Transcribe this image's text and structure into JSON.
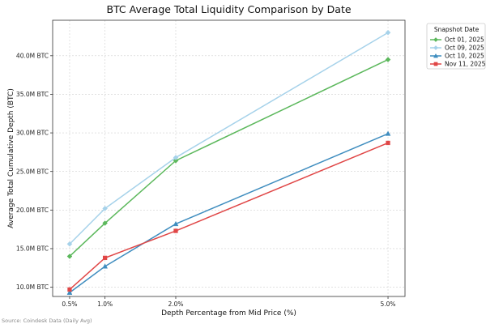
{
  "chart_data": {
    "type": "line",
    "title": "BTC Average Total Liquidity Comparison by Date",
    "xlabel": "Depth Percentage from Mid Price (%)",
    "ylabel": "Average Total Cumulative Depth (BTC)",
    "x": [
      0.5,
      1.0,
      2.0,
      5.0
    ],
    "x_tick_labels": [
      "0.5%",
      "1.0%",
      "2.0%",
      "5.0%"
    ],
    "y_ticks": [
      10,
      15,
      20,
      25,
      30,
      35,
      40
    ],
    "y_tick_labels": [
      "10.0M BTC",
      "15.0M BTC",
      "20.0M BTC",
      "25.0M BTC",
      "30.0M BTC",
      "35.0M BTC",
      "40.0M BTC"
    ],
    "xlim": [
      0.26,
      5.24
    ],
    "ylim": [
      8.8,
      44.6
    ],
    "grid": true,
    "legend": {
      "title": "Snapshot Date",
      "position": "outside-top-right"
    },
    "series": [
      {
        "name": "Oct 01, 2025",
        "color": "#5cb85c",
        "marker": "diamond",
        "values": [
          14.0,
          18.3,
          26.4,
          39.5
        ]
      },
      {
        "name": "Oct 09, 2025",
        "color": "#a6d2ea",
        "marker": "diamond",
        "values": [
          15.6,
          20.2,
          26.8,
          43.0
        ]
      },
      {
        "name": "Oct 10, 2025",
        "color": "#3f8dbf",
        "marker": "triangle",
        "values": [
          9.3,
          12.7,
          18.2,
          29.9
        ]
      },
      {
        "name": "Nov 11, 2025",
        "color": "#e04646",
        "marker": "square",
        "values": [
          9.7,
          13.8,
          17.3,
          28.7
        ]
      }
    ],
    "source_note": "Source: Coindesk Data (Daily Avg)"
  }
}
